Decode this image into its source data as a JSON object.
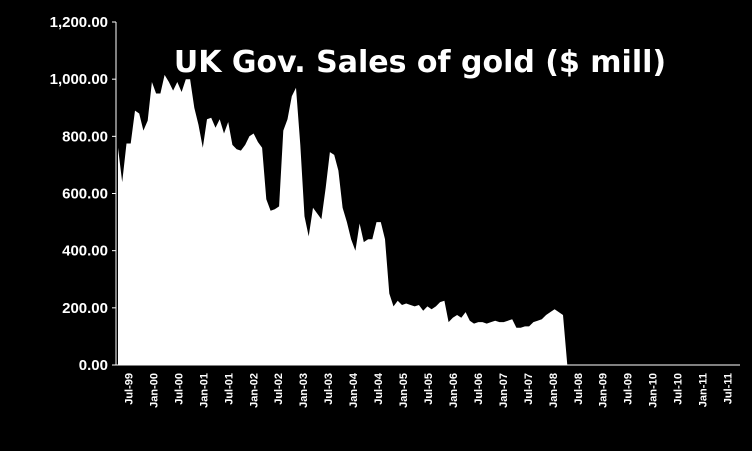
{
  "chart_data": {
    "type": "area",
    "title": "UK Gov. Sales of gold ($ mill)",
    "xlabel": "",
    "ylabel": "",
    "ylim": [
      0,
      1200
    ],
    "y_ticks": [
      "0.00",
      "200.00",
      "400.00",
      "600.00",
      "800.00",
      "1,000.00",
      "1,200.00"
    ],
    "x_ticks": [
      "Jul-99",
      "Jan-00",
      "Jul-00",
      "Jan-01",
      "Jul-01",
      "Jan-02",
      "Jul-02",
      "Jan-03",
      "Jul-03",
      "Jan-04",
      "Jul-04",
      "Jan-05",
      "Jul-05",
      "Jan-06",
      "Jul-06",
      "Jan-07",
      "Jul-07",
      "Jan-08",
      "Jul-08",
      "Jan-09",
      "Jul-09",
      "Jan-10",
      "Jul-10",
      "Jan-11",
      "Jul-11"
    ],
    "grid": false,
    "area_color": "#ffffff",
    "background": "#000000",
    "series": [
      {
        "values": [
          760,
          640,
          775,
          775,
          890,
          880,
          820,
          855,
          990,
          950,
          950,
          1015,
          990,
          960,
          990,
          955,
          1000,
          1000,
          900,
          840,
          760,
          860,
          865,
          830,
          860,
          810,
          850,
          770,
          755,
          750,
          770,
          800,
          810,
          780,
          760,
          580,
          540,
          545,
          555,
          820,
          860,
          940,
          970,
          770,
          520,
          450,
          550,
          530,
          510,
          620,
          745,
          735,
          680,
          550,
          500,
          440,
          400,
          495,
          430,
          440,
          440,
          500,
          500,
          440,
          250,
          205,
          225,
          210,
          215,
          210,
          205,
          210,
          190,
          205,
          195,
          205,
          220,
          225,
          150,
          165,
          175,
          165,
          185,
          155,
          145,
          150,
          150,
          145,
          150,
          155,
          150,
          150,
          155,
          160,
          130,
          130,
          135,
          135,
          150,
          155,
          160,
          175,
          185,
          195,
          185,
          175,
          0
        ]
      }
    ]
  }
}
